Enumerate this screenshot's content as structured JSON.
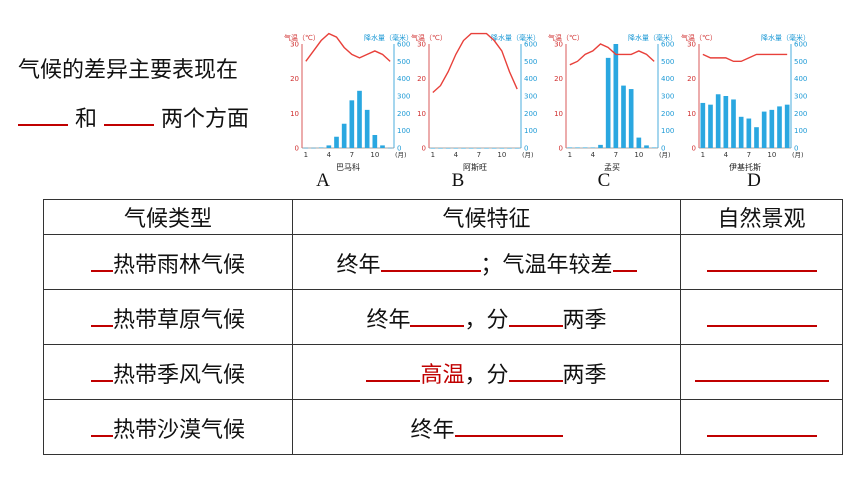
{
  "question": {
    "line1": "气候的差异主要表现在",
    "and": "和",
    "tail": "两个方面"
  },
  "charts": [
    {
      "letter": "A",
      "place": "巴马科",
      "temp": [
        25,
        28,
        31,
        33,
        32,
        29,
        27,
        26,
        27,
        28,
        27,
        25
      ],
      "precip": [
        1,
        1,
        3,
        15,
        65,
        140,
        275,
        330,
        220,
        75,
        15,
        1
      ]
    },
    {
      "letter": "B",
      "place": "阿斯旺",
      "temp": [
        16,
        18,
        22,
        27,
        31,
        33,
        33,
        33,
        31,
        28,
        22,
        17
      ],
      "precip": [
        0,
        0,
        0,
        0,
        0,
        0,
        0,
        0,
        0,
        0,
        0,
        0
      ]
    },
    {
      "letter": "C",
      "place": "孟买",
      "temp": [
        24,
        25,
        27,
        28,
        30,
        29,
        27,
        27,
        27,
        28,
        27,
        25
      ],
      "precip": [
        3,
        3,
        3,
        3,
        18,
        520,
        640,
        360,
        340,
        60,
        15,
        3
      ]
    },
    {
      "letter": "D",
      "place": "伊基托斯",
      "temp": [
        27,
        26,
        26,
        26,
        25,
        25,
        26,
        27,
        27,
        27,
        27,
        27
      ],
      "precip": [
        260,
        250,
        310,
        300,
        280,
        180,
        170,
        120,
        210,
        220,
        240,
        250
      ]
    }
  ],
  "chart_axis": {
    "temp_label": "气温（℃）",
    "precip_label": "降水量（毫米）",
    "temp_ticks": [
      "30",
      "20",
      "10",
      "0"
    ],
    "precip_ticks": [
      "600",
      "500",
      "400",
      "300",
      "200",
      "100",
      "0"
    ],
    "month_ticks": [
      "1",
      "4",
      "7",
      "10"
    ],
    "month_unit": "(月)"
  },
  "table": {
    "headers": [
      "气候类型",
      "气候特征",
      "自然景观"
    ],
    "rows": [
      {
        "type": "热带雨林气候",
        "feature_prefix": "终年",
        "feature_sep": "；气温年较差",
        "feature_mid": "",
        "feature_suffix": ""
      },
      {
        "type": "热带草原气候",
        "feature_prefix": "终年",
        "feature_sep": "，分",
        "feature_suffix": "两季"
      },
      {
        "type": "热带季风气候",
        "feature_red": "高温",
        "feature_sep": "，分",
        "feature_suffix": "两季"
      },
      {
        "type": "热带沙漠气候",
        "feature_prefix": "终年"
      }
    ]
  },
  "colors": {
    "accent_red": "#c00000",
    "temp_line": "#e8403a",
    "precip_bar": "#2aa7e0",
    "axis_temp": "#d03030",
    "axis_precip": "#1e9ad6"
  }
}
